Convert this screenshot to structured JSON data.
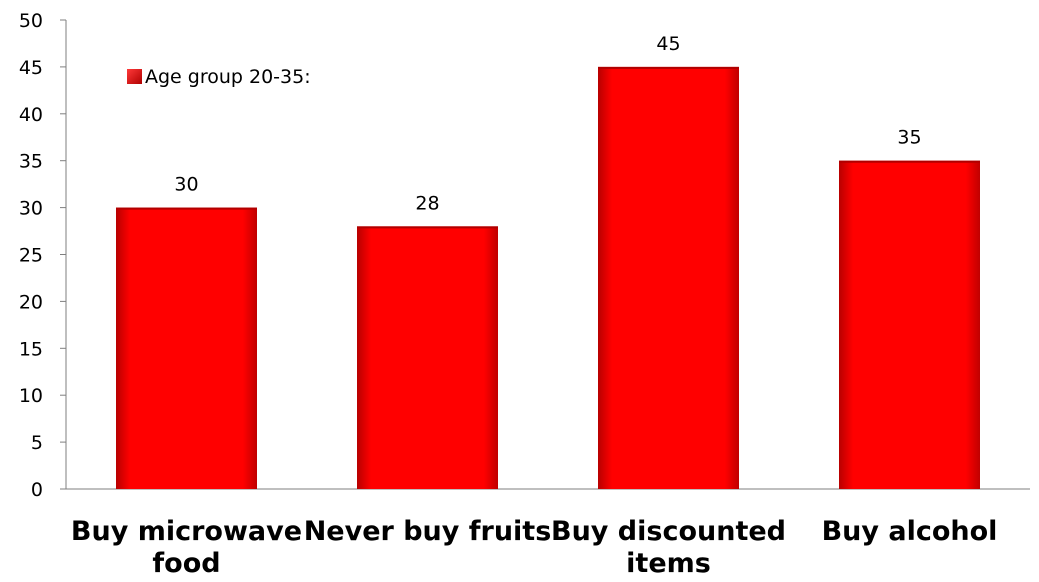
{
  "chart_data": {
    "type": "bar",
    "categories": [
      [
        "Buy microwave",
        "food"
      ],
      [
        "Never buy fruits"
      ],
      [
        "Buy discounted",
        "items"
      ],
      [
        "Buy alcohol"
      ]
    ],
    "series": [
      {
        "name": "Age group 20-35:",
        "values": [
          30,
          28,
          45,
          35
        ]
      }
    ],
    "ylim": [
      0,
      50
    ],
    "yticks": [
      0,
      5,
      10,
      15,
      20,
      25,
      30,
      35,
      40,
      45,
      50
    ],
    "data_labels": true,
    "grid": false,
    "legend_position": "top-left",
    "bar_color": "#ff0000"
  }
}
